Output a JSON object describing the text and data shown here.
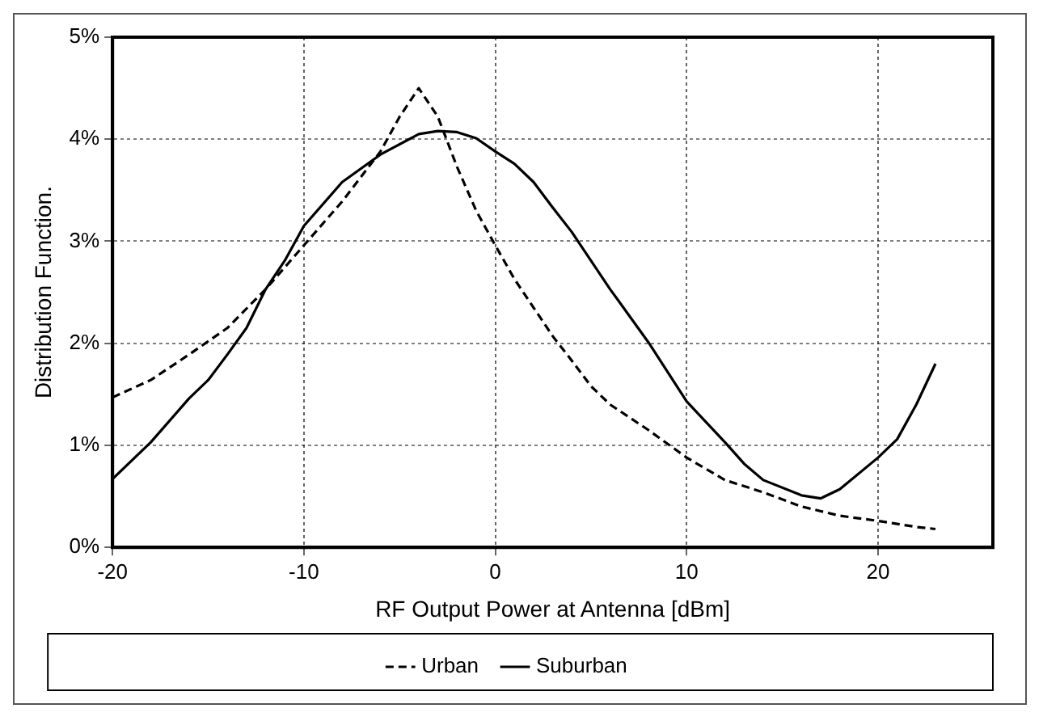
{
  "chart_data": {
    "type": "line",
    "xlabel": "RF Output Power at Antenna [dBm]",
    "ylabel": "Distribution Function.",
    "xlim": [
      -20,
      26
    ],
    "xticks": [
      -20,
      -10,
      0,
      10,
      20
    ],
    "ylim": [
      0,
      5
    ],
    "yticks": [
      {
        "value": 0,
        "label": "0%"
      },
      {
        "value": 1,
        "label": "1%"
      },
      {
        "value": 2,
        "label": "2%"
      },
      {
        "value": 3,
        "label": "3%"
      },
      {
        "value": 4,
        "label": "4%"
      },
      {
        "value": 5,
        "label": "5%"
      }
    ],
    "grid": true,
    "legend": "bottom",
    "marker": "none",
    "series": [
      {
        "name": "Urban",
        "color": "#000000",
        "line_style": "dashed",
        "x": [
          -20,
          -18,
          -16,
          -14,
          -12,
          -10,
          -8,
          -6,
          -5,
          -4,
          -3,
          -2,
          -1,
          0,
          1,
          2,
          3,
          4,
          5,
          6,
          8,
          10,
          12,
          14,
          16,
          18,
          20,
          22,
          23
        ],
        "values": [
          1.47,
          1.64,
          1.89,
          2.15,
          2.53,
          2.96,
          3.39,
          3.88,
          4.22,
          4.5,
          4.22,
          3.73,
          3.3,
          2.96,
          2.63,
          2.35,
          2.07,
          1.83,
          1.58,
          1.4,
          1.15,
          0.88,
          0.66,
          0.54,
          0.4,
          0.31,
          0.26,
          0.2,
          0.18
        ]
      },
      {
        "name": "Suburban",
        "color": "#000000",
        "line_style": "solid",
        "x": [
          -20,
          -18,
          -16,
          -15,
          -14,
          -13,
          -12,
          -11,
          -10,
          -8,
          -6,
          -4,
          -3,
          -2,
          -1,
          0,
          1,
          2,
          3,
          4,
          6,
          8,
          10,
          12,
          13,
          14,
          16,
          17,
          18,
          20,
          21,
          22,
          23
        ],
        "values": [
          0.67,
          1.03,
          1.46,
          1.64,
          1.89,
          2.15,
          2.53,
          2.81,
          3.15,
          3.58,
          3.85,
          4.05,
          4.08,
          4.07,
          4.01,
          3.88,
          3.76,
          3.58,
          3.33,
          3.09,
          2.53,
          2.01,
          1.43,
          1.03,
          0.82,
          0.66,
          0.51,
          0.48,
          0.57,
          0.88,
          1.06,
          1.4,
          1.8
        ]
      }
    ]
  }
}
